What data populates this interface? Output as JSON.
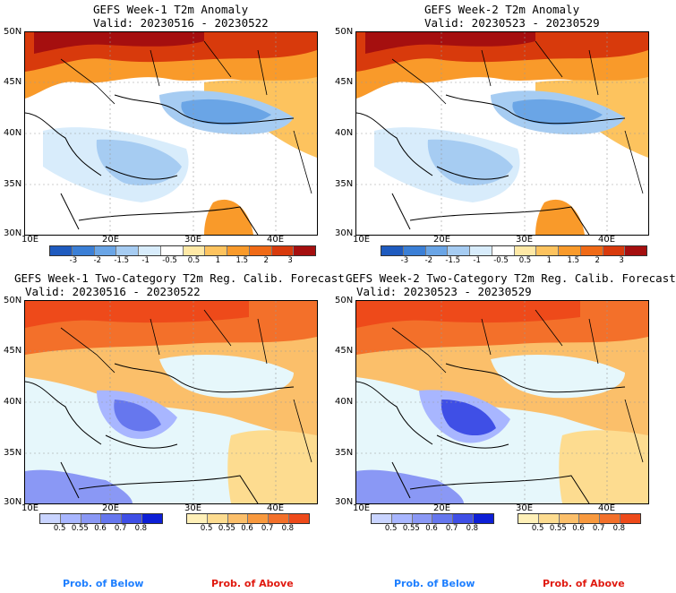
{
  "panels": [
    {
      "title_line1": "GEFS Week-1 T2m Anomaly",
      "title_line2": "Valid: 20230516 - 20230522",
      "kind": "anomaly"
    },
    {
      "title_line1": "GEFS Week-2 T2m Anomaly",
      "title_line2": "Valid: 20230523 - 20230529",
      "kind": "anomaly"
    },
    {
      "title_line1": "GEFS Week-1 Two-Category T2m Reg. Calib. Forecast",
      "title_line2": "Valid: 20230516 - 20230522",
      "kind": "prob"
    },
    {
      "title_line1": "GEFS Week-2 Two-Category T2m Reg. Calib. Forecast",
      "title_line2": "Valid: 20230523 - 20230529",
      "kind": "prob"
    }
  ],
  "axes": {
    "lat_labels": [
      "50N",
      "45N",
      "40N",
      "35N",
      "30N"
    ],
    "lon_labels": [
      "10E",
      "20E",
      "30E",
      "40E"
    ]
  },
  "anomaly_colorbar": {
    "ticks": [
      "-3",
      "-2",
      "-1.5",
      "-1",
      "-0.5",
      "0.5",
      "1",
      "1.5",
      "2",
      "3"
    ],
    "colors": [
      "#1f5bbf",
      "#3b7fd6",
      "#6aa5e6",
      "#a6ccf2",
      "#d8ecfb",
      "#ffffff",
      "#ffe9a6",
      "#fdc35e",
      "#f99a2a",
      "#f06a16",
      "#d83a0c",
      "#a50f0f"
    ]
  },
  "prob_below_colorbar": {
    "ticks": [
      "0.5",
      "0.55",
      "0.6",
      "0.7",
      "0.8"
    ],
    "colors": [
      "#c9d4ff",
      "#a8b6ff",
      "#8a98f5",
      "#6677ee",
      "#3f4fe6",
      "#0d1fd6"
    ]
  },
  "prob_above_colorbar": {
    "ticks": [
      "0.5",
      "0.55",
      "0.6",
      "0.7",
      "0.8"
    ],
    "colors": [
      "#fff0b8",
      "#fddc90",
      "#fbbf6a",
      "#f8993e",
      "#f3702a",
      "#ee4a1a"
    ]
  },
  "footer": {
    "below_label": "Prob. of Below",
    "above_label": "Prob. of Above",
    "below_color": "#1e7fff",
    "above_color": "#e01a10"
  }
}
